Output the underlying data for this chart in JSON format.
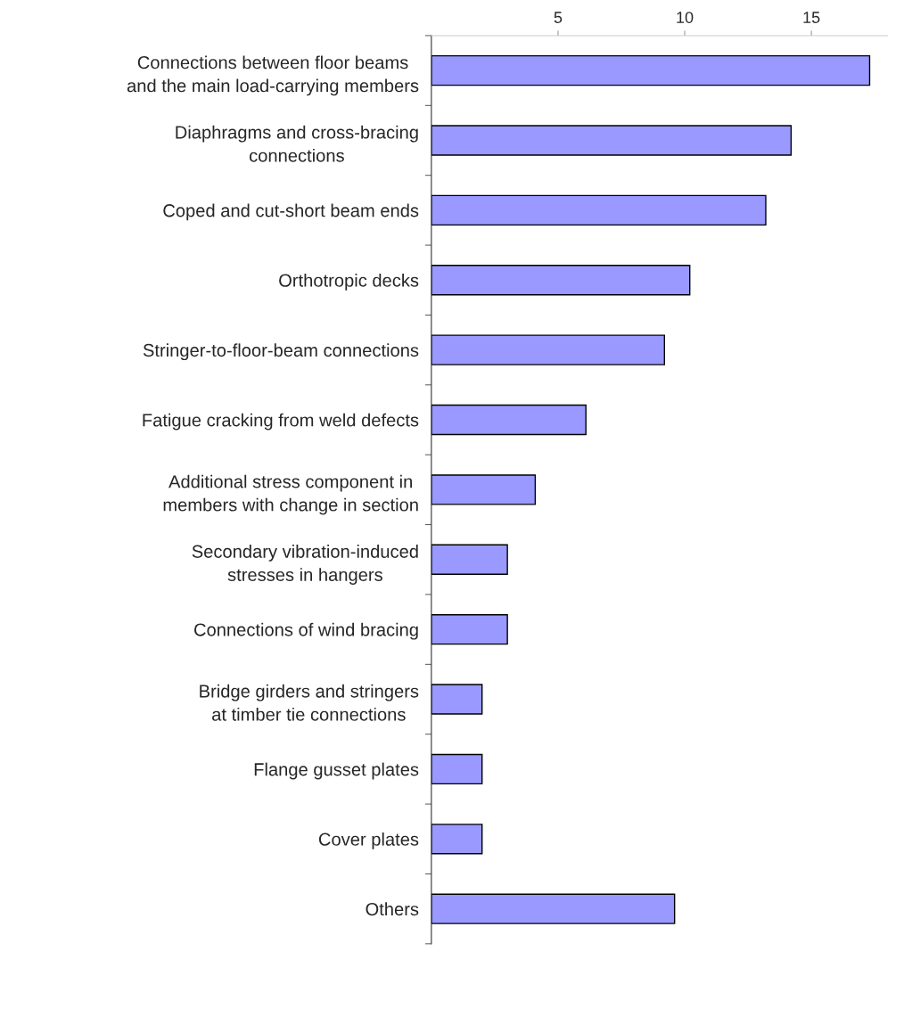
{
  "chart_data": {
    "type": "bar",
    "orientation": "horizontal",
    "categories": [
      "Connections between floor beams\nand the main load-carrying members",
      "Diaphragms and cross-bracing\nconnections",
      "Coped and cut-short beam ends",
      "Orthotropic decks",
      "Stringer-to-floor-beam connections",
      "Fatigue cracking from weld defects",
      "Additional stress component in\nmembers with change in section",
      "Secondary vibration-induced\nstresses in hangers",
      "Connections of wind bracing",
      "Bridge girders and stringers\nat timber tie connections",
      "Flange gusset plates",
      "Cover plates",
      "Others"
    ],
    "values": [
      17.3,
      14.2,
      13.2,
      10.2,
      9.2,
      6.1,
      4.1,
      3.0,
      3.0,
      2.0,
      2.0,
      2.0,
      9.6
    ],
    "color": "#9999ff",
    "xlim": [
      0,
      18
    ],
    "xticks": [
      5,
      10,
      15
    ],
    "grid": false,
    "legend": false
  }
}
